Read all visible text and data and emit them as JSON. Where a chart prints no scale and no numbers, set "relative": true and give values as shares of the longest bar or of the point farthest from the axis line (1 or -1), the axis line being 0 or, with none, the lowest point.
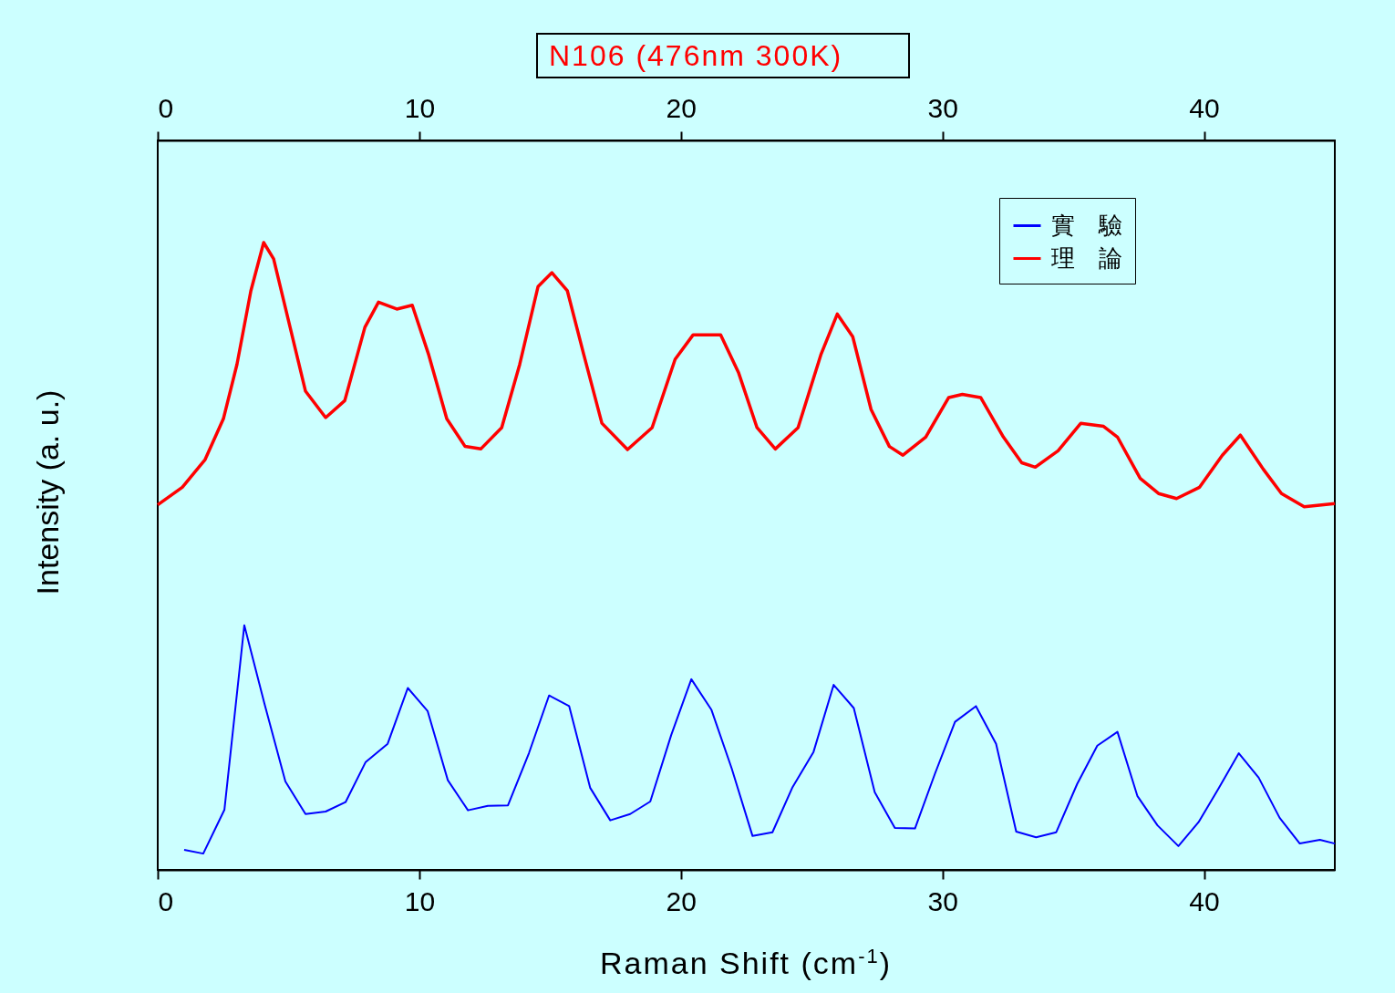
{
  "chart_data": {
    "type": "line",
    "title": "N106 (476nm 300K)",
    "xlabel": "Raman Shift (cm$^{-1}$)",
    "ylabel": "Intensity (a. u.)",
    "relative": true,
    "xlim": [
      0,
      45
    ],
    "xticks": [
      0,
      10,
      20,
      30,
      40
    ],
    "x2lim": [
      0,
      45
    ],
    "x2ticks": [
      0,
      10,
      20,
      30,
      40
    ],
    "legend": "top right",
    "grid": false,
    "series": [
      {
        "name": "實　驗",
        "color": "#0000ff",
        "x": [
          1.01,
          1.74,
          2.55,
          3.31,
          4.08,
          4.88,
          5.65,
          6.42,
          7.18,
          7.95,
          8.79,
          9.56,
          10.32,
          11.09,
          11.86,
          12.62,
          13.39,
          14.19,
          14.96,
          15.73,
          16.53,
          17.3,
          18.06,
          18.83,
          19.63,
          20.4,
          21.17,
          21.94,
          22.74,
          23.5,
          24.27,
          25.07,
          25.84,
          26.61,
          27.41,
          28.18,
          28.95,
          29.71,
          30.48,
          31.28,
          32.05,
          32.82,
          33.58,
          34.35,
          35.15,
          35.92,
          36.69,
          37.45,
          38.22,
          39.02,
          39.79,
          40.56,
          41.33,
          42.09,
          42.89,
          43.66,
          44.43,
          45.0
        ],
        "values": [
          0.032,
          0.026,
          0.096,
          0.39,
          0.265,
          0.141,
          0.089,
          0.093,
          0.108,
          0.172,
          0.201,
          0.29,
          0.253,
          0.143,
          0.095,
          0.102,
          0.103,
          0.186,
          0.278,
          0.261,
          0.131,
          0.079,
          0.089,
          0.109,
          0.215,
          0.304,
          0.255,
          0.162,
          0.054,
          0.06,
          0.132,
          0.188,
          0.295,
          0.258,
          0.124,
          0.067,
          0.066,
          0.153,
          0.236,
          0.261,
          0.201,
          0.061,
          0.052,
          0.06,
          0.137,
          0.198,
          0.22,
          0.118,
          0.071,
          0.038,
          0.076,
          0.13,
          0.186,
          0.147,
          0.083,
          0.042,
          0.048,
          0.042
        ]
      },
      {
        "name": "理　論",
        "color": "#ff0000",
        "x": [
          0,
          0.94,
          1.81,
          2.51,
          3.03,
          3.56,
          4.05,
          4.43,
          5.06,
          5.65,
          6.42,
          7.15,
          7.92,
          8.44,
          9.14,
          9.73,
          10.36,
          11.05,
          11.75,
          12.35,
          13.15,
          13.84,
          14.54,
          15.07,
          15.66,
          16.29,
          16.98,
          17.96,
          18.9,
          19.78,
          20.47,
          21.52,
          22.21,
          22.91,
          23.61,
          24.48,
          25.35,
          25.98,
          26.57,
          27.27,
          27.97,
          28.49,
          29.36,
          30.24,
          30.76,
          31.46,
          32.33,
          33.03,
          33.55,
          34.42,
          35.29,
          36.16,
          36.69,
          37.56,
          38.26,
          38.95,
          39.83,
          40.7,
          41.39,
          42.26,
          42.96,
          43.83,
          45.0
        ],
        "values": [
          0.582,
          0.61,
          0.654,
          0.719,
          0.806,
          0.923,
          1.0,
          0.974,
          0.865,
          0.763,
          0.721,
          0.748,
          0.865,
          0.905,
          0.894,
          0.9,
          0.821,
          0.719,
          0.675,
          0.671,
          0.705,
          0.806,
          0.93,
          0.952,
          0.923,
          0.821,
          0.712,
          0.67,
          0.705,
          0.814,
          0.853,
          0.853,
          0.792,
          0.705,
          0.671,
          0.705,
          0.821,
          0.886,
          0.85,
          0.734,
          0.675,
          0.661,
          0.69,
          0.753,
          0.758,
          0.753,
          0.69,
          0.649,
          0.642,
          0.668,
          0.712,
          0.707,
          0.69,
          0.624,
          0.6,
          0.592,
          0.61,
          0.661,
          0.693,
          0.639,
          0.6,
          0.579,
          0.584
        ]
      }
    ]
  }
}
